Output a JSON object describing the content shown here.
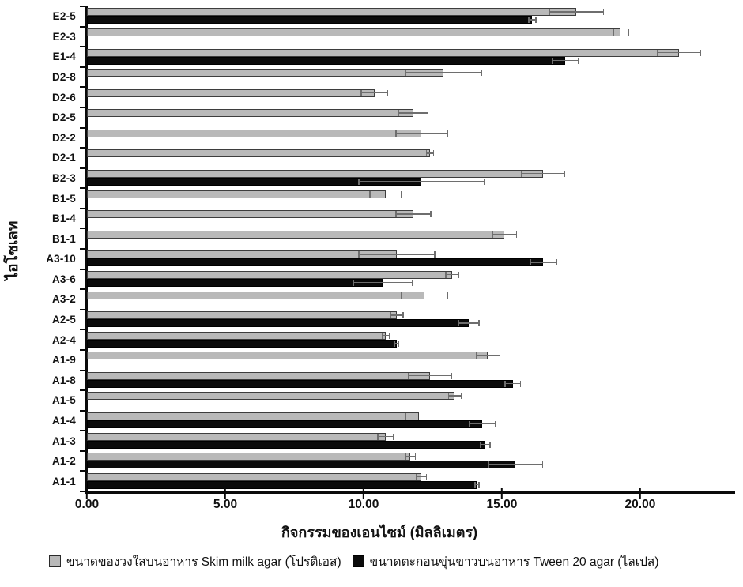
{
  "chart_data": {
    "type": "bar",
    "orientation": "horizontal",
    "title": "",
    "xlabel": "กิจกรรมของเอนไซม์ (มิลลิเมตร)",
    "ylabel": "ไอโซเลท",
    "xlim": [
      0,
      23.43
    ],
    "xticks": [
      0,
      5,
      10,
      15,
      20
    ],
    "xtick_labels": [
      "0.00",
      "5.00",
      "10.00",
      "15.00",
      "20.00"
    ],
    "grid": false,
    "legend_position": "bottom",
    "categories_top_to_bottom": [
      "E2-5",
      "E2-3",
      "E1-4",
      "D2-8",
      "D2-6",
      "D2-5",
      "D2-2",
      "D2-1",
      "B2-3",
      "B1-5",
      "B1-4",
      "B1-1",
      "A3-10",
      "A3-6",
      "A3-2",
      "A2-5",
      "A2-4",
      "A1-9",
      "A1-8",
      "A1-5",
      "A1-4",
      "A1-3",
      "A1-2",
      "A1-1"
    ],
    "series": [
      {
        "name": "ขนาดของวงใสบนอาหาร Skim milk agar (โปรติเอส)",
        "color": "#b9b9b9",
        "values": [
          17.7,
          19.3,
          21.4,
          12.9,
          10.4,
          11.8,
          12.1,
          12.4,
          16.5,
          10.8,
          11.8,
          15.1,
          11.2,
          13.2,
          12.2,
          11.2,
          10.8,
          14.5,
          12.4,
          13.3,
          12.0,
          10.8,
          11.7,
          12.1
        ],
        "errors": [
          1.0,
          0.3,
          0.8,
          1.4,
          0.5,
          0.55,
          0.95,
          0.15,
          0.8,
          0.6,
          0.65,
          0.45,
          1.4,
          0.25,
          0.85,
          0.25,
          0.15,
          0.45,
          0.8,
          0.25,
          0.5,
          0.3,
          0.2,
          0.2
        ]
      },
      {
        "name": "ขนาดตะกอนขุ่นขาวบนอาหาร Tween 20 agar (ไลเปส)",
        "color": "#0b0b0b",
        "values": [
          16.1,
          null,
          17.3,
          null,
          null,
          null,
          null,
          null,
          12.1,
          null,
          null,
          null,
          16.5,
          10.7,
          null,
          13.8,
          11.2,
          null,
          15.4,
          null,
          14.3,
          14.4,
          15.5,
          14.1
        ],
        "errors": [
          0.15,
          null,
          0.5,
          null,
          null,
          null,
          null,
          null,
          2.3,
          null,
          null,
          null,
          0.5,
          1.1,
          null,
          0.4,
          0.1,
          null,
          0.3,
          null,
          0.5,
          0.2,
          1.0,
          0.1
        ]
      }
    ]
  }
}
